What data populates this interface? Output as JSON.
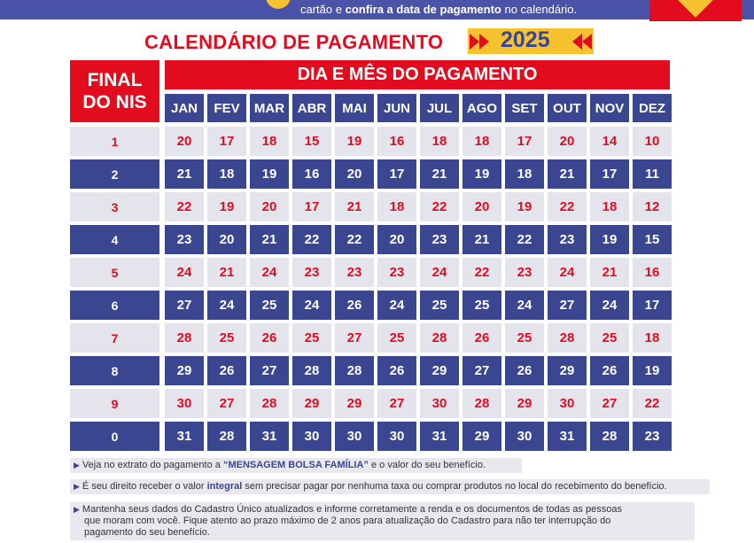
{
  "header": {
    "text_plain_1": "cartão e ",
    "text_bold_1": "confira a data de pagamento",
    "text_plain_2": " no calendário."
  },
  "title": "CALENDÁRIO DE PAGAMENTO",
  "year": "2025",
  "table": {
    "nis_header_line1": "FINAL",
    "nis_header_line2": "DO NIS",
    "dia_header": "DIA E MÊS DO PAGAMENTO",
    "months": [
      "JAN",
      "FEV",
      "MAR",
      "ABR",
      "MAI",
      "JUN",
      "JUL",
      "AGO",
      "SET",
      "OUT",
      "NOV",
      "DEZ"
    ],
    "rows": [
      {
        "nis": "1",
        "days": [
          "20",
          "17",
          "18",
          "15",
          "19",
          "16",
          "18",
          "18",
          "17",
          "20",
          "14",
          "10"
        ]
      },
      {
        "nis": "2",
        "days": [
          "21",
          "18",
          "19",
          "16",
          "20",
          "17",
          "21",
          "19",
          "18",
          "21",
          "17",
          "11"
        ]
      },
      {
        "nis": "3",
        "days": [
          "22",
          "19",
          "20",
          "17",
          "21",
          "18",
          "22",
          "20",
          "19",
          "22",
          "18",
          "12"
        ]
      },
      {
        "nis": "4",
        "days": [
          "23",
          "20",
          "21",
          "22",
          "22",
          "20",
          "23",
          "21",
          "22",
          "23",
          "19",
          "15"
        ]
      },
      {
        "nis": "5",
        "days": [
          "24",
          "21",
          "24",
          "23",
          "23",
          "23",
          "24",
          "22",
          "23",
          "24",
          "21",
          "16"
        ]
      },
      {
        "nis": "6",
        "days": [
          "27",
          "24",
          "25",
          "24",
          "26",
          "24",
          "25",
          "25",
          "24",
          "27",
          "24",
          "17"
        ]
      },
      {
        "nis": "7",
        "days": [
          "28",
          "25",
          "26",
          "25",
          "27",
          "25",
          "28",
          "26",
          "25",
          "28",
          "25",
          "18"
        ]
      },
      {
        "nis": "8",
        "days": [
          "29",
          "26",
          "27",
          "28",
          "28",
          "26",
          "29",
          "27",
          "26",
          "29",
          "26",
          "19"
        ]
      },
      {
        "nis": "9",
        "days": [
          "30",
          "27",
          "28",
          "29",
          "29",
          "27",
          "30",
          "28",
          "29",
          "30",
          "27",
          "22"
        ]
      },
      {
        "nis": "0",
        "days": [
          "31",
          "28",
          "31",
          "30",
          "30",
          "30",
          "31",
          "29",
          "30",
          "31",
          "28",
          "23"
        ]
      }
    ]
  },
  "notes": {
    "n1_a": "Veja no extrato do pagamento a ",
    "n1_b": "“MENSAGEM BOLSA FAMÍLIA”",
    "n1_c": " e o valor do seu benefício.",
    "n2_a": "É seu direito receber o valor ",
    "n2_b": "integral",
    "n2_c": " sem precisar pagar por nenhuma taxa ou comprar produtos no local do recebimento do benefício.",
    "n3_l1": "Mantenha seus dados do Cadastro Único atualizados e informe corretamente a renda e os documentos de todas as pessoas",
    "n3_l2": "que moram com você. Fique atento ao prazo máximo de 2 anos para atualização do Cadastro para não ter interrupção do",
    "n3_l3": "pagamento do seu benefício."
  }
}
